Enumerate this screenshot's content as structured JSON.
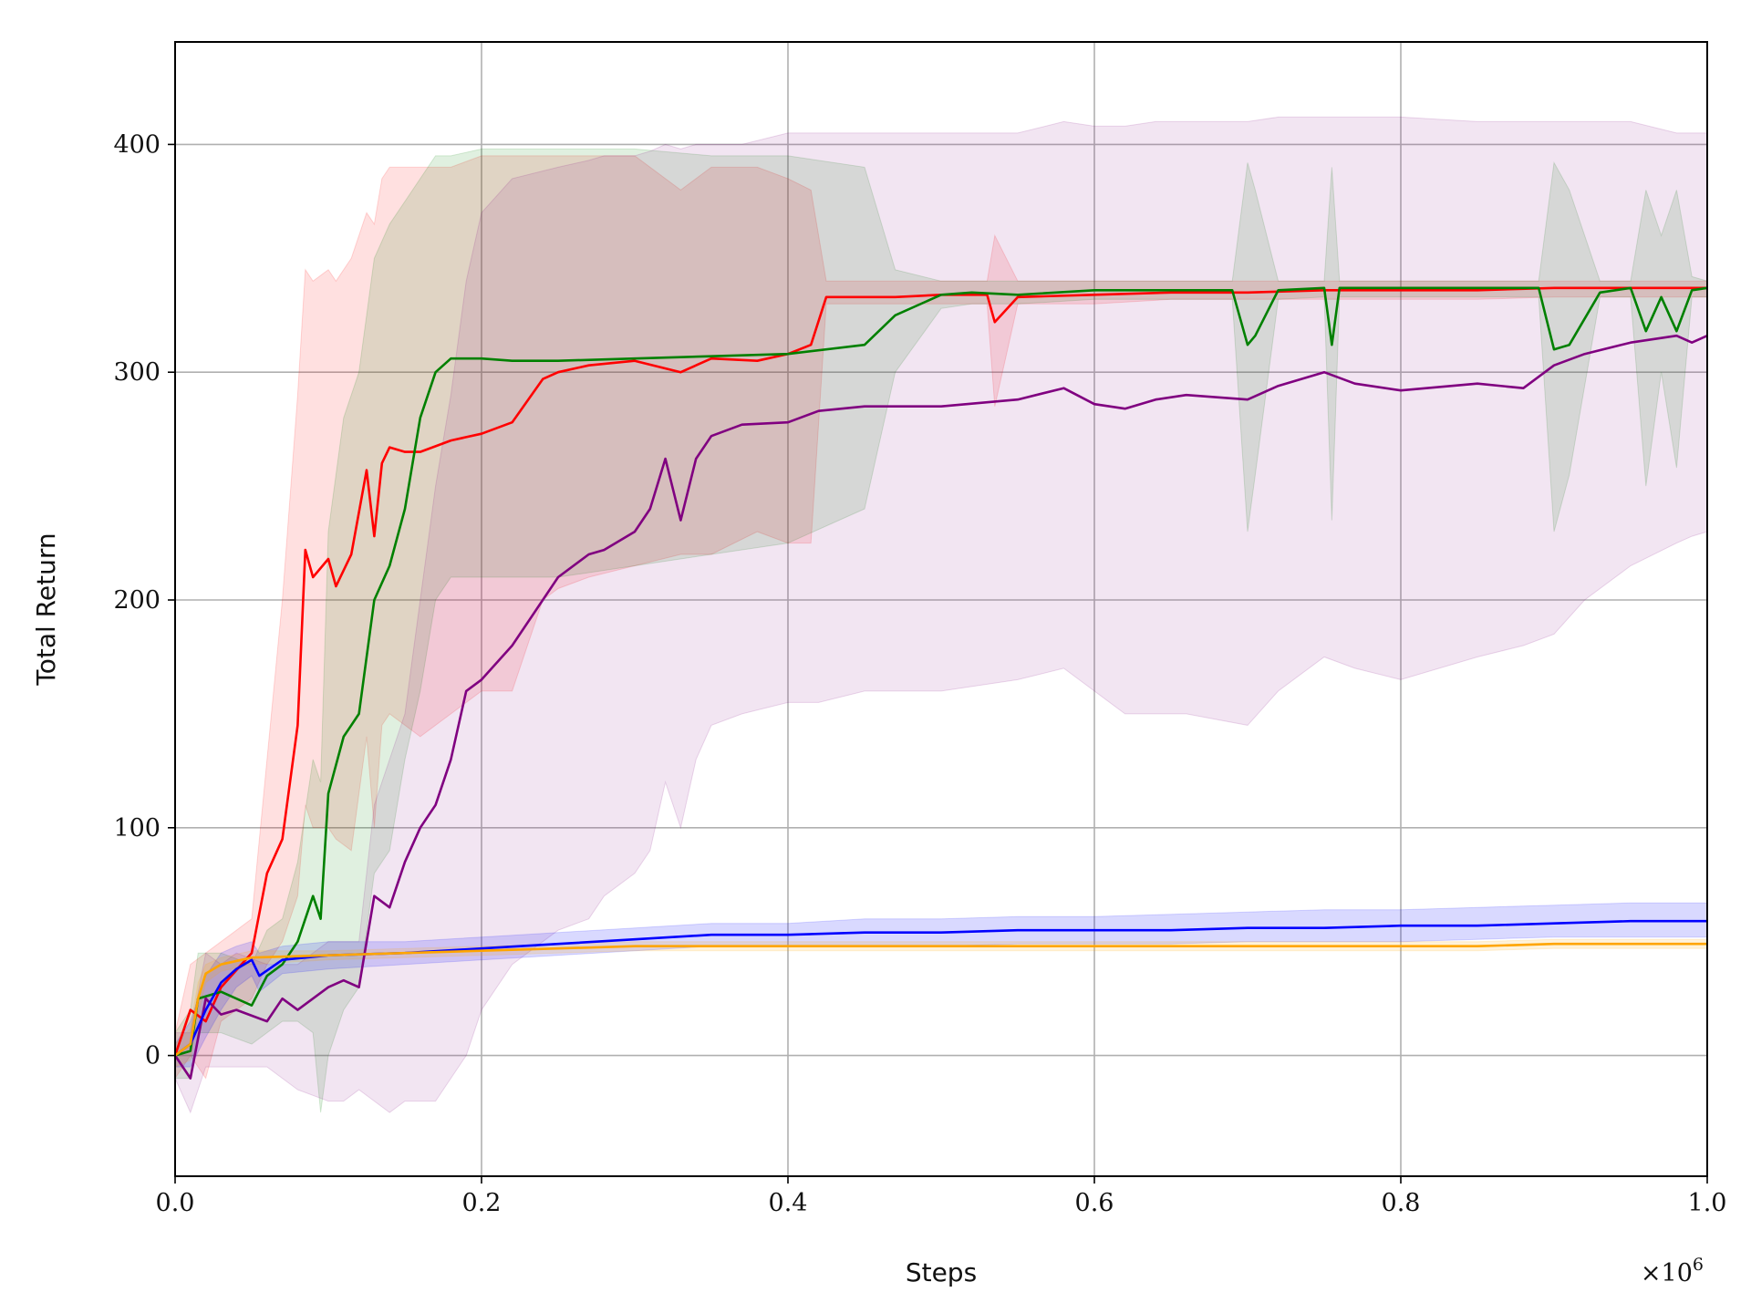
{
  "chart_data": {
    "type": "line",
    "title": "",
    "xlabel": "Steps",
    "ylabel": "Total Return",
    "x_multiplier_label": "×10",
    "x_multiplier_exp": "6",
    "xlim": [
      0.0,
      1.0
    ],
    "ylim": [
      -53,
      445
    ],
    "xticks": [
      0.0,
      0.2,
      0.4,
      0.6,
      0.8,
      1.0
    ],
    "xtick_labels": [
      "0.0",
      "0.2",
      "0.4",
      "0.6",
      "0.8",
      "1.0"
    ],
    "yticks": [
      0,
      100,
      200,
      300,
      400
    ],
    "ytick_labels": [
      "0",
      "100",
      "200",
      "300",
      "400"
    ],
    "grid": true,
    "legend": "none",
    "series": [
      {
        "color": "#ff0000",
        "band_alpha": 0.12,
        "x": [
          0.0,
          0.01,
          0.02,
          0.03,
          0.05,
          0.06,
          0.07,
          0.08,
          0.085,
          0.09,
          0.1,
          0.105,
          0.115,
          0.125,
          0.13,
          0.135,
          0.14,
          0.15,
          0.16,
          0.18,
          0.2,
          0.22,
          0.24,
          0.25,
          0.27,
          0.3,
          0.33,
          0.35,
          0.38,
          0.4,
          0.415,
          0.425,
          0.44,
          0.47,
          0.5,
          0.53,
          0.535,
          0.55,
          0.6,
          0.65,
          0.7,
          0.75,
          0.8,
          0.85,
          0.9,
          0.95,
          1.0
        ],
        "y": [
          0,
          20,
          15,
          30,
          45,
          80,
          95,
          145,
          222,
          210,
          218,
          206,
          220,
          257,
          228,
          260,
          267,
          265,
          265,
          270,
          273,
          278,
          297,
          300,
          303,
          305,
          300,
          306,
          305,
          308,
          312,
          333,
          333,
          333,
          334,
          334,
          322,
          333,
          334,
          335,
          335,
          336,
          336,
          336,
          337,
          337,
          337
        ],
        "upper": [
          10,
          40,
          45,
          50,
          60,
          130,
          200,
          290,
          345,
          340,
          345,
          340,
          350,
          370,
          365,
          385,
          390,
          390,
          390,
          390,
          395,
          395,
          395,
          395,
          395,
          395,
          380,
          390,
          390,
          385,
          380,
          340,
          340,
          340,
          340,
          340,
          360,
          340,
          340,
          340,
          340,
          340,
          340,
          340,
          340,
          340,
          340
        ],
        "lower": [
          -10,
          0,
          -10,
          15,
          25,
          40,
          50,
          70,
          110,
          100,
          100,
          95,
          90,
          140,
          100,
          145,
          150,
          145,
          140,
          150,
          160,
          160,
          200,
          205,
          210,
          215,
          220,
          220,
          230,
          225,
          225,
          330,
          330,
          330,
          330,
          330,
          285,
          330,
          330,
          332,
          332,
          332,
          332,
          332,
          333,
          333,
          333
        ]
      },
      {
        "color": "#008000",
        "band_alpha": 0.12,
        "x": [
          0.0,
          0.01,
          0.015,
          0.03,
          0.05,
          0.06,
          0.07,
          0.08,
          0.09,
          0.095,
          0.1,
          0.11,
          0.12,
          0.13,
          0.14,
          0.15,
          0.16,
          0.17,
          0.18,
          0.2,
          0.22,
          0.25,
          0.3,
          0.35,
          0.4,
          0.45,
          0.47,
          0.5,
          0.52,
          0.55,
          0.6,
          0.65,
          0.69,
          0.7,
          0.705,
          0.72,
          0.75,
          0.755,
          0.76,
          0.8,
          0.85,
          0.89,
          0.9,
          0.91,
          0.93,
          0.95,
          0.96,
          0.97,
          0.98,
          0.99,
          1.0
        ],
        "y": [
          0,
          2,
          25,
          28,
          22,
          35,
          40,
          50,
          70,
          60,
          115,
          140,
          150,
          200,
          215,
          240,
          280,
          300,
          306,
          306,
          305,
          305,
          306,
          307,
          308,
          312,
          325,
          334,
          335,
          334,
          336,
          336,
          336,
          312,
          316,
          336,
          337,
          312,
          337,
          337,
          337,
          337,
          310,
          312,
          335,
          337,
          318,
          333,
          318,
          336,
          337
        ],
        "upper": [
          10,
          20,
          45,
          45,
          40,
          55,
          60,
          85,
          130,
          120,
          230,
          280,
          300,
          350,
          365,
          375,
          385,
          395,
          395,
          398,
          398,
          398,
          398,
          395,
          395,
          390,
          345,
          340,
          340,
          340,
          340,
          340,
          340,
          392,
          380,
          340,
          340,
          390,
          340,
          340,
          340,
          340,
          392,
          380,
          340,
          340,
          380,
          360,
          380,
          342,
          340
        ],
        "lower": [
          -10,
          -10,
          10,
          10,
          5,
          10,
          15,
          15,
          10,
          -25,
          0,
          20,
          30,
          80,
          90,
          130,
          160,
          200,
          210,
          210,
          210,
          210,
          215,
          220,
          225,
          240,
          300,
          328,
          330,
          330,
          332,
          332,
          332,
          230,
          255,
          332,
          333,
          235,
          333,
          333,
          333,
          333,
          230,
          255,
          333,
          333,
          250,
          300,
          258,
          333,
          333
        ]
      },
      {
        "color": "#800080",
        "band_alpha": 0.1,
        "x": [
          0.0,
          0.01,
          0.02,
          0.03,
          0.04,
          0.06,
          0.07,
          0.08,
          0.1,
          0.11,
          0.12,
          0.13,
          0.14,
          0.15,
          0.16,
          0.17,
          0.18,
          0.19,
          0.2,
          0.22,
          0.25,
          0.27,
          0.28,
          0.3,
          0.31,
          0.32,
          0.33,
          0.34,
          0.35,
          0.37,
          0.4,
          0.42,
          0.45,
          0.5,
          0.55,
          0.58,
          0.6,
          0.62,
          0.64,
          0.66,
          0.7,
          0.72,
          0.75,
          0.77,
          0.8,
          0.85,
          0.88,
          0.9,
          0.92,
          0.95,
          0.98,
          0.99,
          1.0
        ],
        "y": [
          0,
          -10,
          25,
          18,
          20,
          15,
          25,
          20,
          30,
          33,
          30,
          70,
          65,
          85,
          100,
          110,
          130,
          160,
          165,
          180,
          210,
          220,
          222,
          230,
          240,
          262,
          235,
          262,
          272,
          277,
          278,
          283,
          285,
          285,
          288,
          293,
          286,
          284,
          288,
          290,
          288,
          294,
          300,
          295,
          292,
          295,
          293,
          303,
          308,
          313,
          316,
          313,
          316
        ],
        "upper": [
          10,
          10,
          45,
          40,
          45,
          40,
          40,
          40,
          50,
          50,
          50,
          110,
          130,
          150,
          200,
          250,
          290,
          340,
          370,
          385,
          390,
          393,
          395,
          395,
          397,
          400,
          398,
          400,
          400,
          400,
          405,
          405,
          405,
          405,
          405,
          410,
          408,
          408,
          410,
          410,
          410,
          412,
          412,
          412,
          412,
          410,
          410,
          410,
          410,
          410,
          405,
          405,
          405
        ],
        "lower": [
          -10,
          -25,
          -5,
          -5,
          -5,
          -5,
          -10,
          -15,
          -20,
          -20,
          -15,
          -20,
          -25,
          -20,
          -20,
          -20,
          -10,
          0,
          20,
          40,
          55,
          60,
          70,
          80,
          90,
          120,
          100,
          130,
          145,
          150,
          155,
          155,
          160,
          160,
          165,
          170,
          160,
          150,
          150,
          150,
          145,
          160,
          175,
          170,
          165,
          175,
          180,
          185,
          200,
          215,
          225,
          228,
          230
        ]
      },
      {
        "color": "#0000ff",
        "band_alpha": 0.15,
        "x": [
          0.0,
          0.01,
          0.02,
          0.03,
          0.04,
          0.05,
          0.055,
          0.07,
          0.1,
          0.15,
          0.2,
          0.25,
          0.3,
          0.35,
          0.4,
          0.45,
          0.5,
          0.55,
          0.6,
          0.65,
          0.7,
          0.75,
          0.8,
          0.85,
          0.9,
          0.95,
          0.98,
          1.0
        ],
        "y": [
          0,
          5,
          20,
          32,
          38,
          42,
          35,
          42,
          44,
          45,
          47,
          49,
          51,
          53,
          53,
          54,
          54,
          55,
          55,
          55,
          56,
          56,
          57,
          57,
          58,
          59,
          59,
          59
        ],
        "upper": [
          5,
          15,
          35,
          45,
          48,
          50,
          45,
          48,
          50,
          50,
          52,
          54,
          56,
          58,
          58,
          60,
          60,
          61,
          61,
          62,
          63,
          64,
          64,
          65,
          66,
          67,
          67,
          67
        ],
        "lower": [
          -5,
          -5,
          8,
          20,
          30,
          35,
          28,
          36,
          38,
          40,
          42,
          44,
          46,
          48,
          48,
          48,
          48,
          49,
          49,
          49,
          50,
          50,
          50,
          51,
          52,
          52,
          52,
          52
        ]
      },
      {
        "color": "#ffa500",
        "band_alpha": 0.15,
        "x": [
          0.0,
          0.01,
          0.015,
          0.02,
          0.03,
          0.05,
          0.1,
          0.15,
          0.2,
          0.25,
          0.3,
          0.35,
          0.4,
          0.45,
          0.5,
          0.55,
          0.6,
          0.65,
          0.7,
          0.75,
          0.8,
          0.85,
          0.9,
          0.95,
          1.0
        ],
        "y": [
          0,
          5,
          25,
          36,
          40,
          43,
          44,
          45,
          46,
          47,
          48,
          48,
          48,
          48,
          48,
          48,
          48,
          48,
          48,
          48,
          48,
          48,
          49,
          49,
          49
        ],
        "upper": [
          5,
          12,
          32,
          40,
          43,
          46,
          46,
          47,
          48,
          49,
          50,
          50,
          50,
          50,
          50,
          50,
          50,
          50,
          50,
          50,
          50,
          50,
          51,
          51,
          51
        ],
        "lower": [
          -5,
          -2,
          18,
          32,
          37,
          40,
          42,
          43,
          44,
          45,
          46,
          46,
          46,
          46,
          46,
          46,
          46,
          46,
          46,
          46,
          46,
          46,
          47,
          47,
          47
        ]
      }
    ]
  }
}
